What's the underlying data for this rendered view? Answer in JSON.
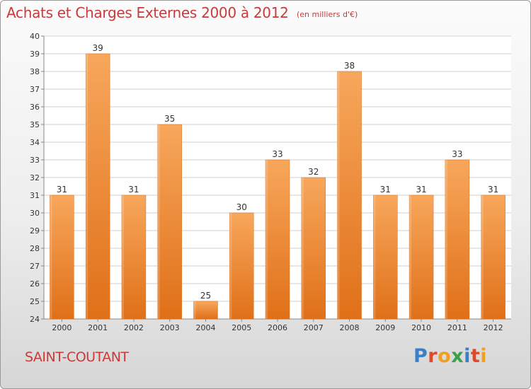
{
  "header": {
    "title": "Achats et Charges Externes 2000 à 2012",
    "subtitle": "(en milliers d'€)"
  },
  "footer": {
    "commune": "SAINT-COUTANT",
    "brand": "Proxiti",
    "brand_letters": [
      {
        "char": "P",
        "color": "#3a7fc9"
      },
      {
        "char": "r",
        "color": "#e0482a"
      },
      {
        "char": "o",
        "color": "#f0a020"
      },
      {
        "char": "x",
        "color": "#3aa04a"
      },
      {
        "char": "i",
        "color": "#3a7fc9"
      },
      {
        "char": "t",
        "color": "#e0482a"
      },
      {
        "char": "i",
        "color": "#f0a020"
      }
    ]
  },
  "colors": {
    "bar_top": "#f7a75c",
    "bar_bottom": "#e07018",
    "accent_text": "#c93a3a",
    "grid": "#cfcfcf"
  },
  "chart_data": {
    "type": "bar",
    "categories": [
      "2000",
      "2001",
      "2002",
      "2003",
      "2004",
      "2005",
      "2006",
      "2007",
      "2008",
      "2009",
      "2010",
      "2011",
      "2012"
    ],
    "values": [
      31,
      39,
      31,
      35,
      25,
      30,
      33,
      32,
      38,
      31,
      31,
      33,
      31
    ],
    "data_labels": [
      "31",
      "39",
      "31",
      "35",
      "25",
      "30",
      "33",
      "32",
      "38",
      "31",
      "31",
      "33",
      "31"
    ],
    "title": "Achats et Charges Externes 2000 à 2012",
    "ylim": [
      24,
      40
    ],
    "yticks": [
      "24",
      "25",
      "26",
      "27",
      "28",
      "29",
      "30",
      "31",
      "32",
      "33",
      "34",
      "35",
      "36",
      "37",
      "38",
      "39",
      "40"
    ],
    "grid": true
  }
}
